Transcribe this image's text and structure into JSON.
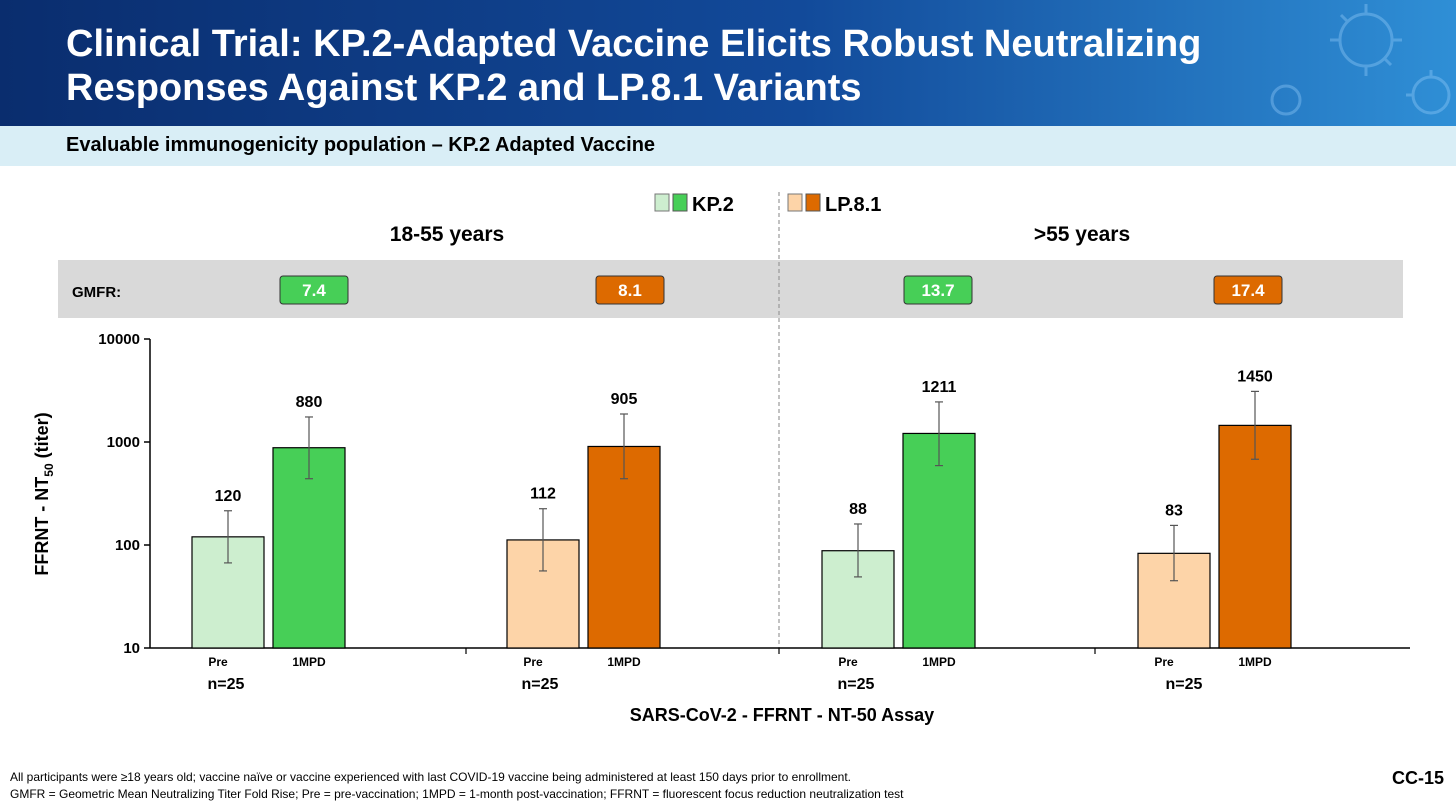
{
  "title_line1": "Clinical Trial: KP.2-Adapted Vaccine Elicits Robust Neutralizing",
  "title_line2": "Responses Against KP.2 and LP.8.1 Variants",
  "subtitle": "Evaluable immunogenicity population – KP.2 Adapted Vaccine",
  "colors": {
    "kp2_pre": "#cdeecf",
    "kp2_post": "#47cf57",
    "lp81_pre": "#fdd4a8",
    "lp81_post": "#dd6a00",
    "gmfr_band": "#d9d9d9",
    "header_dark": "#0a2d6e",
    "subtitle_band": "#d9eef6"
  },
  "chart_data": {
    "type": "bar",
    "scale": "log",
    "ylim": [
      10,
      10000
    ],
    "y_ticks": [
      "10",
      "100",
      "1000",
      "10000"
    ],
    "ylabel_main": "FFRNT - NT",
    "ylabel_sub": "50",
    "ylabel_suffix": " (titer)",
    "xlabel": "SARS-CoV-2 - FFRNT - NT-50 Assay",
    "legend": [
      {
        "name": "KP.2",
        "pre_color": "#cdeecf",
        "post_color": "#47cf57"
      },
      {
        "name": "LP.8.1",
        "pre_color": "#fdd4a8",
        "post_color": "#dd6a00"
      }
    ],
    "age_groups": [
      "18-55 years",
      ">55 years"
    ],
    "gmfr_label": "GMFR:",
    "bar_labels": [
      "Pre",
      "1MPD"
    ],
    "groups": [
      {
        "age": "18-55 years",
        "variant": "KP.2",
        "n": "n=25",
        "gmfr": "7.4",
        "pre": {
          "value": 120,
          "label": "120",
          "err_low": 67,
          "err_high": 215
        },
        "post": {
          "value": 880,
          "label": "880",
          "err_low": 440,
          "err_high": 1750
        }
      },
      {
        "age": "18-55 years",
        "variant": "LP.8.1",
        "n": "n=25",
        "gmfr": "8.1",
        "pre": {
          "value": 112,
          "label": "112",
          "err_low": 56,
          "err_high": 225
        },
        "post": {
          "value": 905,
          "label": "905",
          "err_low": 440,
          "err_high": 1870
        }
      },
      {
        "age": ">55 years",
        "variant": "KP.2",
        "n": "n=25",
        "gmfr": "13.7",
        "pre": {
          "value": 88,
          "label": "88",
          "err_low": 49,
          "err_high": 160
        },
        "post": {
          "value": 1211,
          "label": "1211",
          "err_low": 590,
          "err_high": 2450
        }
      },
      {
        "age": ">55 years",
        "variant": "LP.8.1",
        "n": "n=25",
        "gmfr": "17.4",
        "pre": {
          "value": 83,
          "label": "83",
          "err_low": 45,
          "err_high": 155
        },
        "post": {
          "value": 1450,
          "label": "1450",
          "err_low": 680,
          "err_high": 3100
        }
      }
    ]
  },
  "footnote1": "All participants were ≥18 years old; vaccine naïve or vaccine experienced with last COVID-19 vaccine being administered at least 150 days prior to enrollment.",
  "footnote2": "GMFR = Geometric Mean Neutralizing Titer Fold Rise; Pre = pre-vaccination; 1MPD = 1-month post-vaccination; FFRNT = fluorescent focus reduction neutralization test",
  "slide_id": "CC-15"
}
